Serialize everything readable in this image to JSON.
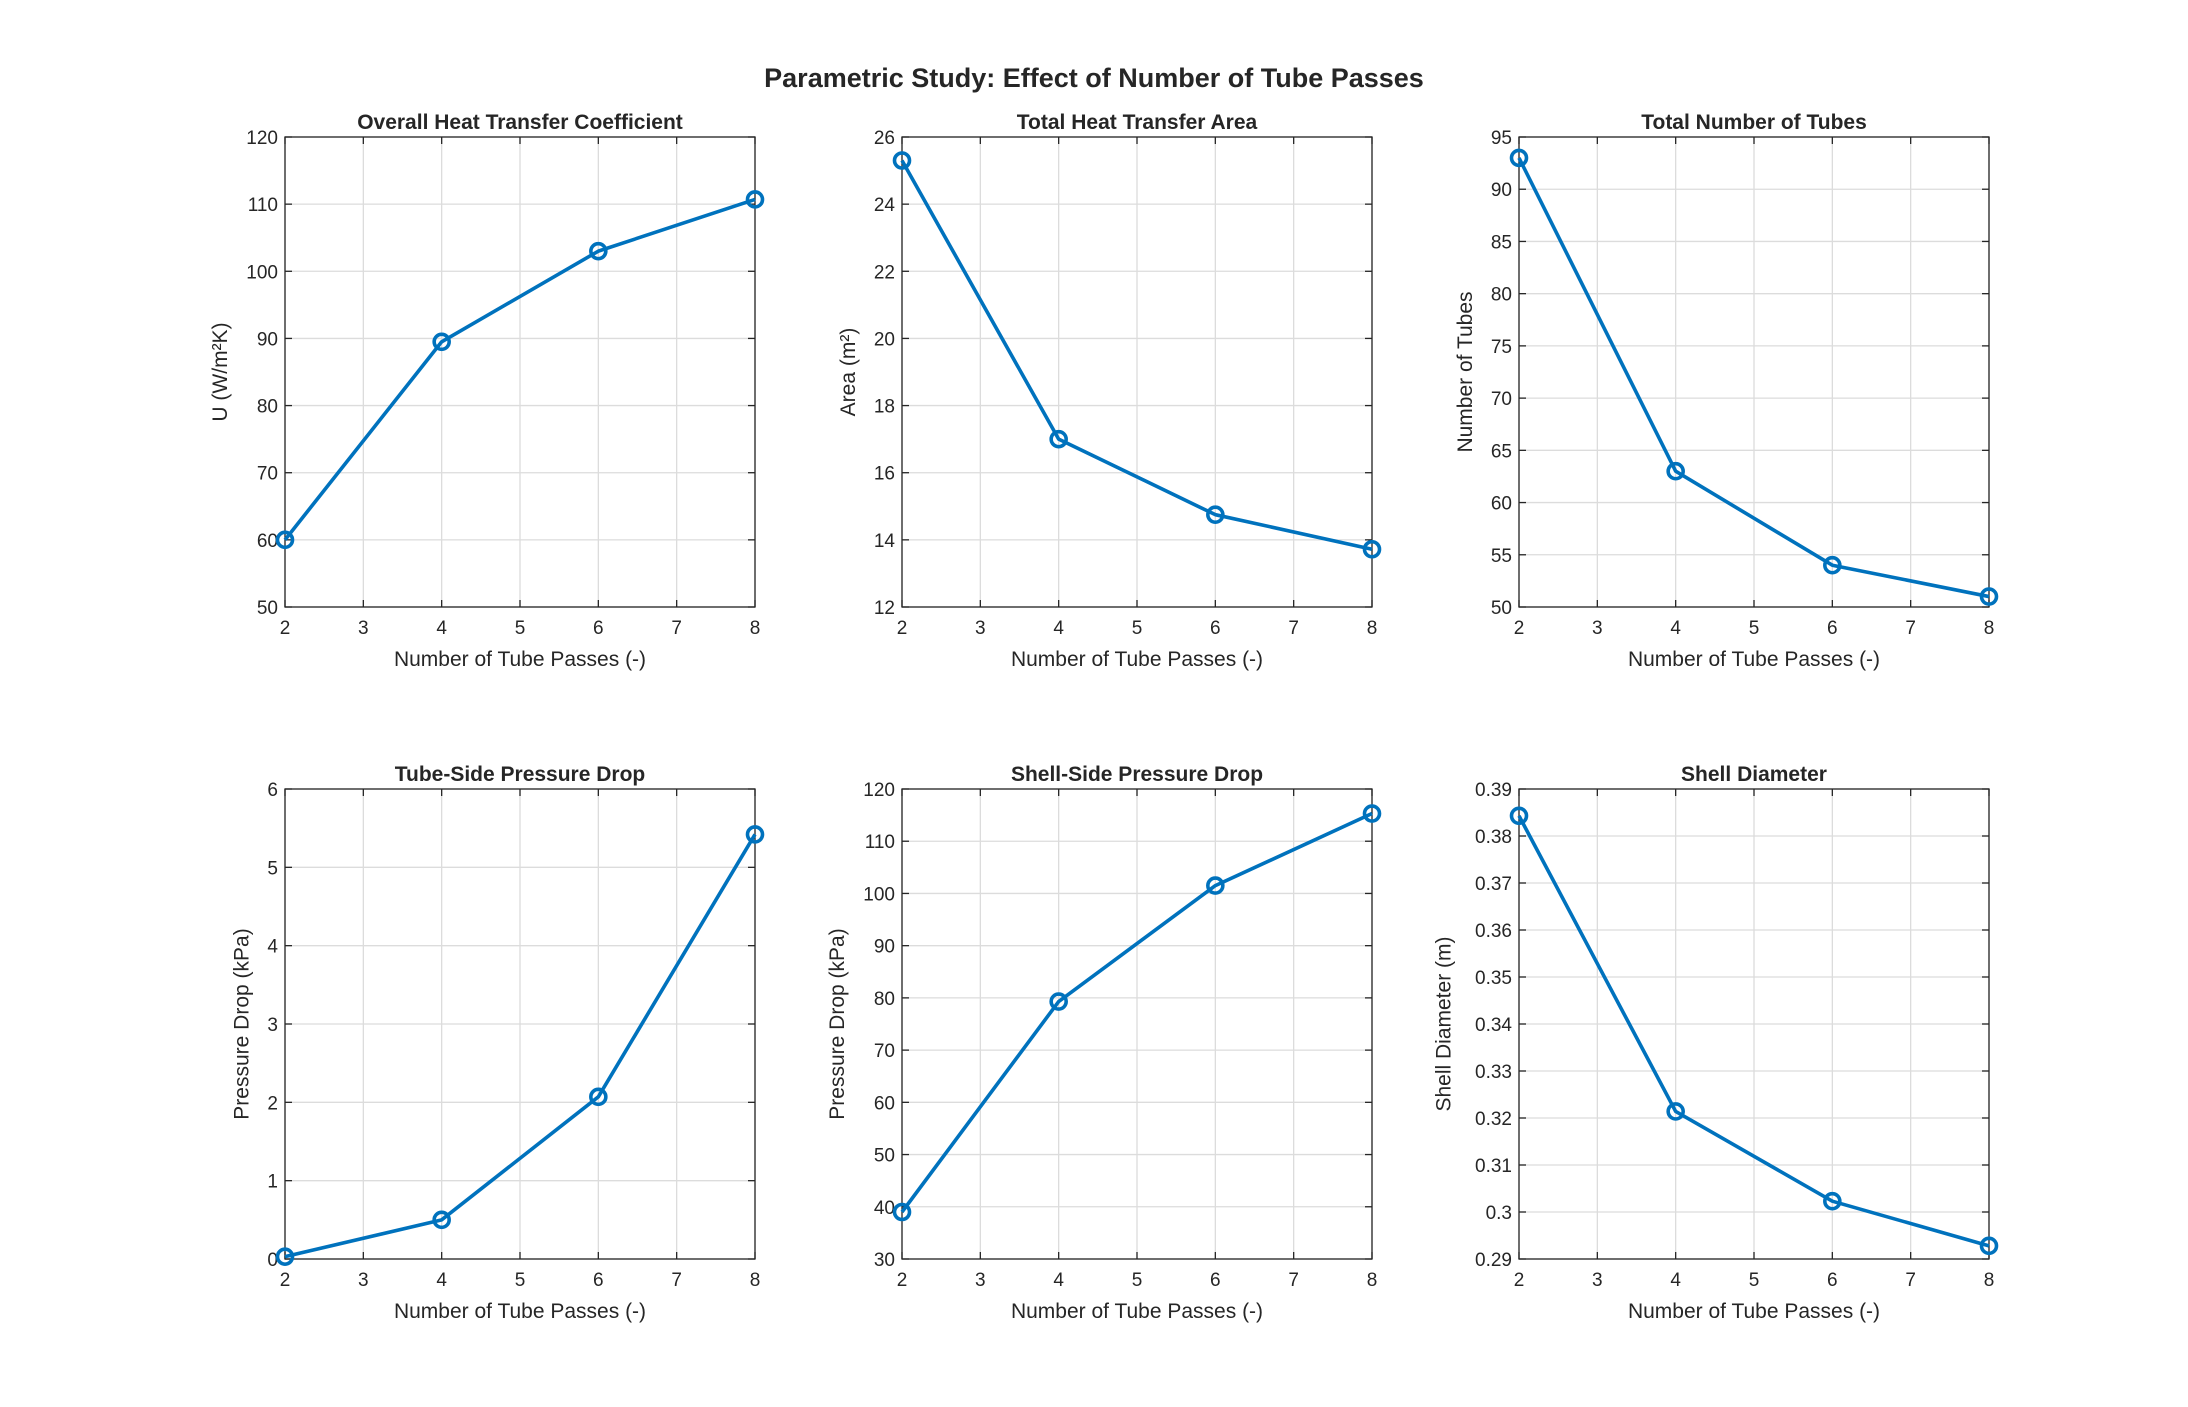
{
  "figure": {
    "title": "Parametric Study: Effect of Number of Tube Passes",
    "line_color": "#0072BD"
  },
  "chart_data": [
    {
      "type": "line",
      "title": "Overall Heat Transfer Coefficient",
      "xlabel": "Number of Tube Passes (-)",
      "ylabel": "U (W/m²K)",
      "x": [
        2,
        4,
        6,
        8
      ],
      "y": [
        60,
        89.5,
        103,
        110.7
      ],
      "xlim": [
        2,
        8
      ],
      "ylim": [
        50,
        120
      ],
      "xticks": [
        2,
        3,
        4,
        5,
        6,
        7,
        8
      ],
      "yticks": [
        50,
        60,
        70,
        80,
        90,
        100,
        110,
        120
      ],
      "ytick_labels": [
        "50",
        "60",
        "70",
        "80",
        "90",
        "100",
        "110",
        "120"
      ],
      "grid": true,
      "marker": "circle"
    },
    {
      "type": "line",
      "title": "Total Heat Transfer Area",
      "xlabel": "Number of Tube Passes (-)",
      "ylabel": "Area (m²)",
      "x": [
        2,
        4,
        6,
        8
      ],
      "y": [
        25.3,
        17,
        14.75,
        13.72
      ],
      "xlim": [
        2,
        8
      ],
      "ylim": [
        12,
        26
      ],
      "xticks": [
        2,
        3,
        4,
        5,
        6,
        7,
        8
      ],
      "yticks": [
        12,
        14,
        16,
        18,
        20,
        22,
        24,
        26
      ],
      "ytick_labels": [
        "12",
        "14",
        "16",
        "18",
        "20",
        "22",
        "24",
        "26"
      ],
      "grid": true,
      "marker": "circle"
    },
    {
      "type": "line",
      "title": "Total Number of Tubes",
      "xlabel": "Number of Tube Passes (-)",
      "ylabel": "Number of Tubes",
      "x": [
        2,
        4,
        6,
        8
      ],
      "y": [
        93,
        63,
        54,
        51
      ],
      "xlim": [
        2,
        8
      ],
      "ylim": [
        50,
        95
      ],
      "xticks": [
        2,
        3,
        4,
        5,
        6,
        7,
        8
      ],
      "yticks": [
        50,
        55,
        60,
        65,
        70,
        75,
        80,
        85,
        90,
        95
      ],
      "ytick_labels": [
        "50",
        "55",
        "60",
        "65",
        "70",
        "75",
        "80",
        "85",
        "90",
        "95"
      ],
      "grid": true,
      "marker": "circle"
    },
    {
      "type": "line",
      "title": "Tube-Side Pressure Drop",
      "xlabel": "Number of Tube Passes (-)",
      "ylabel": "Pressure Drop (kPa)",
      "x": [
        2,
        4,
        6,
        8
      ],
      "y": [
        0.03,
        0.5,
        2.07,
        5.42
      ],
      "xlim": [
        2,
        8
      ],
      "ylim": [
        0,
        6
      ],
      "xticks": [
        2,
        3,
        4,
        5,
        6,
        7,
        8
      ],
      "yticks": [
        0,
        1,
        2,
        3,
        4,
        5,
        6
      ],
      "ytick_labels": [
        "0",
        "1",
        "2",
        "3",
        "4",
        "5",
        "6"
      ],
      "grid": true,
      "marker": "circle"
    },
    {
      "type": "line",
      "title": "Shell-Side Pressure Drop",
      "xlabel": "Number of Tube Passes (-)",
      "ylabel": "Pressure Drop (kPa)",
      "x": [
        2,
        4,
        6,
        8
      ],
      "y": [
        39,
        79.3,
        101.5,
        115.3
      ],
      "xlim": [
        2,
        8
      ],
      "ylim": [
        30,
        120
      ],
      "xticks": [
        2,
        3,
        4,
        5,
        6,
        7,
        8
      ],
      "yticks": [
        30,
        40,
        50,
        60,
        70,
        80,
        90,
        100,
        110,
        120
      ],
      "ytick_labels": [
        "30",
        "40",
        "50",
        "60",
        "70",
        "80",
        "90",
        "100",
        "110",
        "120"
      ],
      "grid": true,
      "marker": "circle"
    },
    {
      "type": "line",
      "title": "Shell Diameter",
      "xlabel": "Number of Tube Passes (-)",
      "ylabel": "Shell Diameter (m)",
      "x": [
        2,
        4,
        6,
        8
      ],
      "y": [
        0.3843,
        0.3214,
        0.3023,
        0.2928
      ],
      "xlim": [
        2,
        8
      ],
      "ylim": [
        0.29,
        0.39
      ],
      "xticks": [
        2,
        3,
        4,
        5,
        6,
        7,
        8
      ],
      "yticks": [
        0.29,
        0.3,
        0.31,
        0.32,
        0.33,
        0.34,
        0.35,
        0.36,
        0.37,
        0.38,
        0.39
      ],
      "ytick_labels": [
        "0.29",
        "0.3",
        "0.31",
        "0.32",
        "0.33",
        "0.34",
        "0.35",
        "0.36",
        "0.37",
        "0.38",
        "0.39"
      ],
      "grid": true,
      "marker": "circle"
    }
  ]
}
